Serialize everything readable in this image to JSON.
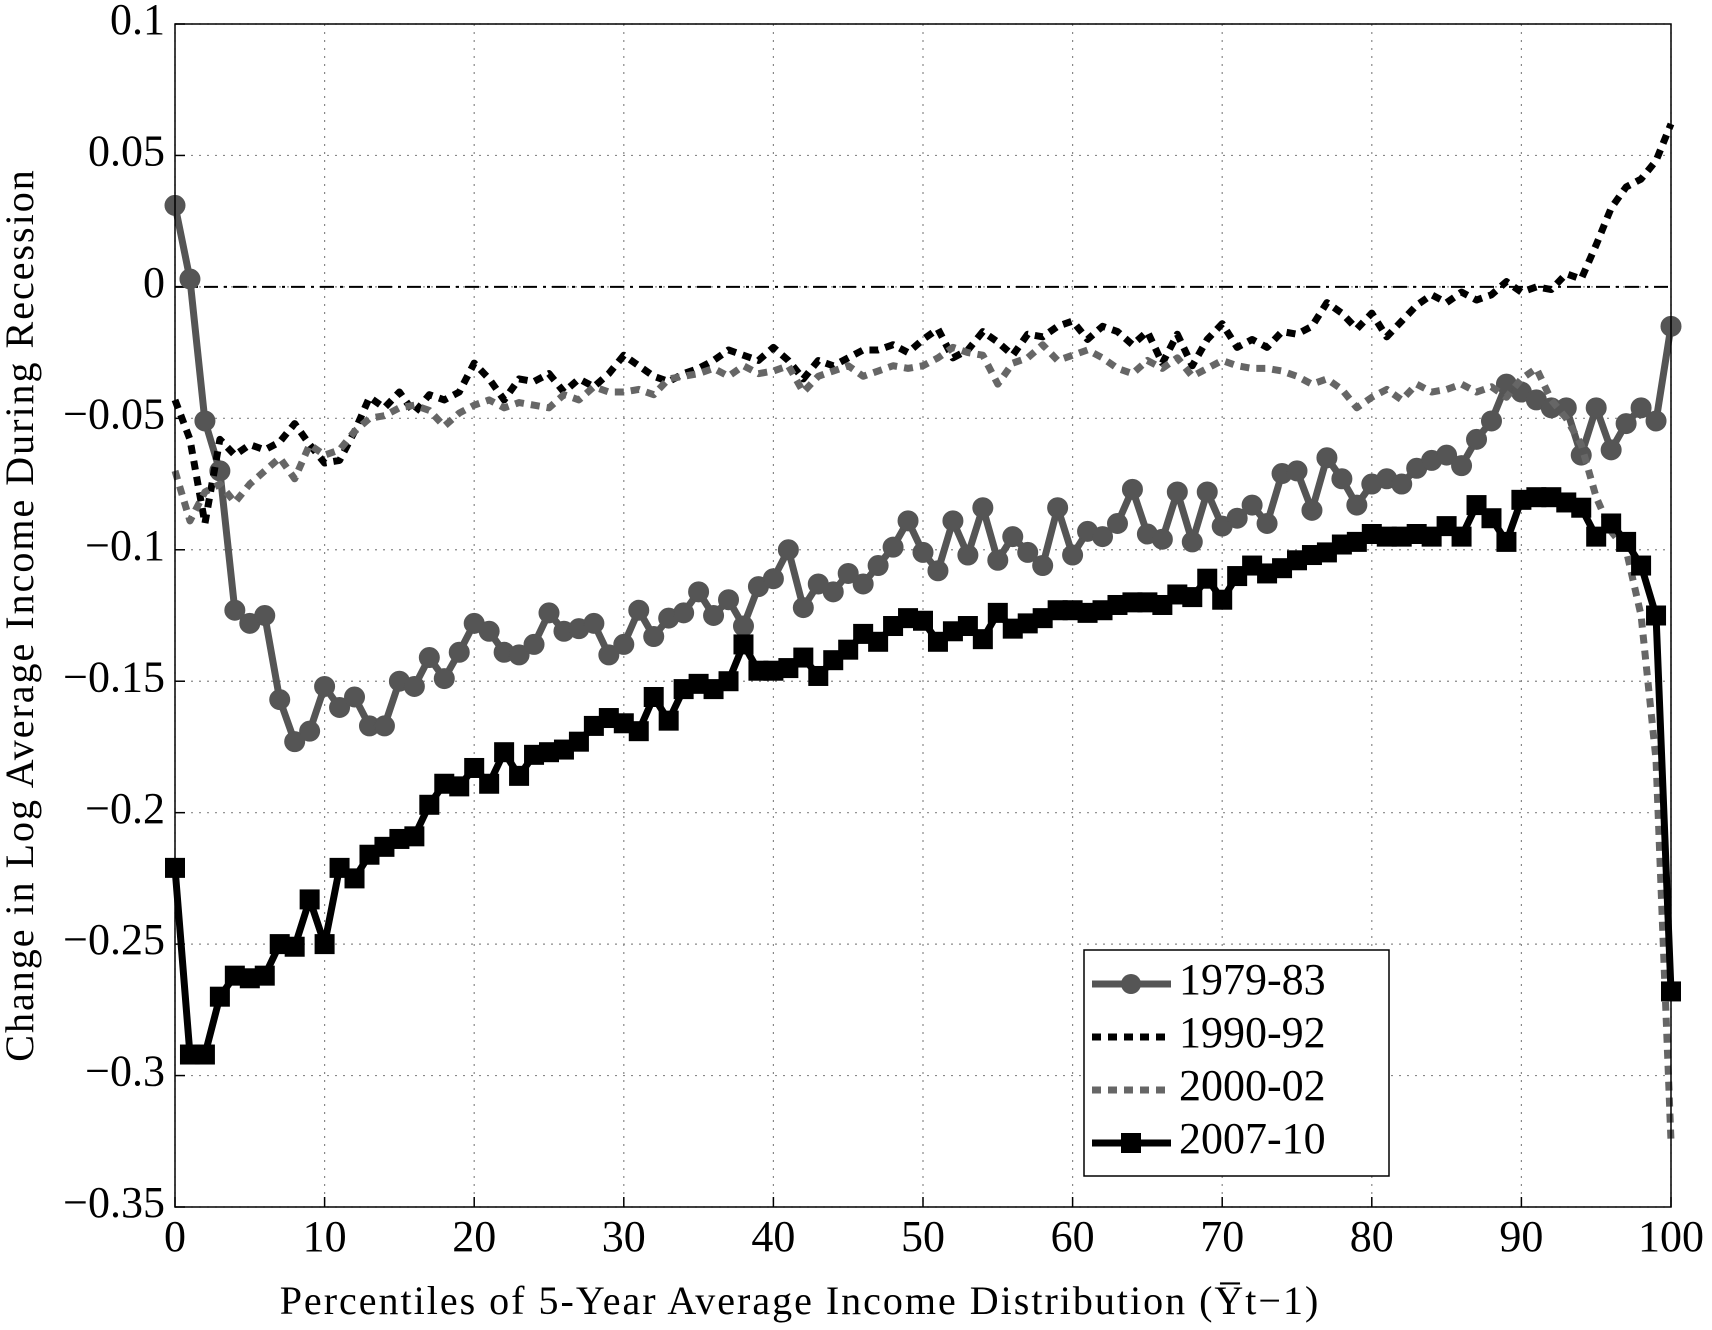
{
  "chart_data": {
    "type": "line",
    "xlabel": "Percentiles of 5-Year Average Income Distribution (Y̅t−1)",
    "ylabel": "Change in Log Average Income During Recession",
    "x": [
      0,
      1,
      2,
      3,
      4,
      5,
      6,
      7,
      8,
      9,
      10,
      11,
      12,
      13,
      14,
      15,
      16,
      17,
      18,
      19,
      20,
      21,
      22,
      23,
      24,
      25,
      26,
      27,
      28,
      29,
      30,
      31,
      32,
      33,
      34,
      35,
      36,
      37,
      38,
      39,
      40,
      41,
      42,
      43,
      44,
      45,
      46,
      47,
      48,
      49,
      50,
      51,
      52,
      53,
      54,
      55,
      56,
      57,
      58,
      59,
      60,
      61,
      62,
      63,
      64,
      65,
      66,
      67,
      68,
      69,
      70,
      71,
      72,
      73,
      74,
      75,
      76,
      77,
      78,
      79,
      80,
      81,
      82,
      83,
      84,
      85,
      86,
      87,
      88,
      89,
      90,
      91,
      92,
      93,
      94,
      95,
      96,
      97,
      98,
      99,
      100
    ],
    "series": [
      {
        "name": "1979-83",
        "color": "#555555",
        "linestyle": "solid",
        "marker": "circle",
        "values": [
          0.031,
          0.003,
          -0.051,
          -0.07,
          -0.123,
          -0.128,
          -0.125,
          -0.157,
          -0.173,
          -0.169,
          -0.152,
          -0.16,
          -0.156,
          -0.167,
          -0.167,
          -0.15,
          -0.152,
          -0.141,
          -0.149,
          -0.139,
          -0.128,
          -0.131,
          -0.139,
          -0.14,
          -0.136,
          -0.124,
          -0.131,
          -0.13,
          -0.128,
          -0.14,
          -0.136,
          -0.123,
          -0.133,
          -0.126,
          -0.124,
          -0.116,
          -0.125,
          -0.119,
          -0.129,
          -0.114,
          -0.111,
          -0.1,
          -0.122,
          -0.113,
          -0.116,
          -0.109,
          -0.113,
          -0.106,
          -0.099,
          -0.089,
          -0.101,
          -0.108,
          -0.089,
          -0.102,
          -0.084,
          -0.104,
          -0.095,
          -0.101,
          -0.106,
          -0.084,
          -0.102,
          -0.093,
          -0.095,
          -0.09,
          -0.077,
          -0.094,
          -0.096,
          -0.078,
          -0.097,
          -0.078,
          -0.091,
          -0.088,
          -0.083,
          -0.09,
          -0.071,
          -0.07,
          -0.085,
          -0.065,
          -0.073,
          -0.083,
          -0.075,
          -0.073,
          -0.075,
          -0.069,
          -0.066,
          -0.064,
          -0.068,
          -0.058,
          -0.051,
          -0.037,
          -0.04,
          -0.043,
          -0.046,
          -0.046,
          -0.064,
          -0.046,
          -0.062,
          -0.052,
          -0.046,
          -0.051,
          -0.015
        ]
      },
      {
        "name": "1990-92",
        "color": "#000000",
        "linestyle": "dotted",
        "marker": null,
        "values": [
          -0.043,
          -0.058,
          -0.09,
          -0.058,
          -0.064,
          -0.06,
          -0.062,
          -0.059,
          -0.052,
          -0.06,
          -0.067,
          -0.066,
          -0.055,
          -0.042,
          -0.046,
          -0.04,
          -0.048,
          -0.041,
          -0.043,
          -0.04,
          -0.029,
          -0.035,
          -0.043,
          -0.035,
          -0.036,
          -0.033,
          -0.04,
          -0.035,
          -0.038,
          -0.033,
          -0.026,
          -0.03,
          -0.034,
          -0.036,
          -0.033,
          -0.031,
          -0.028,
          -0.024,
          -0.026,
          -0.028,
          -0.023,
          -0.028,
          -0.035,
          -0.028,
          -0.03,
          -0.027,
          -0.024,
          -0.024,
          -0.022,
          -0.025,
          -0.02,
          -0.016,
          -0.027,
          -0.024,
          -0.017,
          -0.021,
          -0.026,
          -0.018,
          -0.019,
          -0.015,
          -0.013,
          -0.02,
          -0.015,
          -0.017,
          -0.022,
          -0.017,
          -0.029,
          -0.018,
          -0.03,
          -0.02,
          -0.014,
          -0.023,
          -0.02,
          -0.023,
          -0.017,
          -0.018,
          -0.015,
          -0.006,
          -0.01,
          -0.016,
          -0.01,
          -0.019,
          -0.013,
          -0.007,
          -0.003,
          -0.006,
          -0.002,
          -0.005,
          -0.003,
          0.002,
          -0.002,
          0.0,
          -0.001,
          0.005,
          0.003,
          0.016,
          0.03,
          0.038,
          0.041,
          0.048,
          0.062
        ]
      },
      {
        "name": "2000-02",
        "color": "#666666",
        "linestyle": "dotted",
        "marker": null,
        "values": [
          -0.07,
          -0.089,
          -0.078,
          -0.075,
          -0.082,
          -0.075,
          -0.07,
          -0.065,
          -0.073,
          -0.06,
          -0.064,
          -0.062,
          -0.055,
          -0.05,
          -0.049,
          -0.046,
          -0.045,
          -0.047,
          -0.053,
          -0.048,
          -0.045,
          -0.043,
          -0.046,
          -0.044,
          -0.045,
          -0.046,
          -0.041,
          -0.043,
          -0.038,
          -0.04,
          -0.04,
          -0.039,
          -0.041,
          -0.035,
          -0.034,
          -0.033,
          -0.031,
          -0.034,
          -0.03,
          -0.033,
          -0.032,
          -0.03,
          -0.04,
          -0.034,
          -0.032,
          -0.03,
          -0.034,
          -0.032,
          -0.03,
          -0.031,
          -0.03,
          -0.027,
          -0.023,
          -0.025,
          -0.026,
          -0.037,
          -0.029,
          -0.027,
          -0.022,
          -0.028,
          -0.026,
          -0.024,
          -0.027,
          -0.031,
          -0.033,
          -0.028,
          -0.031,
          -0.027,
          -0.034,
          -0.031,
          -0.028,
          -0.03,
          -0.031,
          -0.031,
          -0.032,
          -0.034,
          -0.037,
          -0.035,
          -0.039,
          -0.046,
          -0.042,
          -0.039,
          -0.043,
          -0.037,
          -0.04,
          -0.039,
          -0.037,
          -0.04,
          -0.038,
          -0.042,
          -0.035,
          -0.031,
          -0.043,
          -0.05,
          -0.06,
          -0.08,
          -0.093,
          -0.1,
          -0.125,
          -0.18,
          -0.325
        ]
      },
      {
        "name": "2007-10",
        "color": "#000000",
        "linestyle": "solid",
        "marker": "square",
        "values": [
          -0.221,
          -0.292,
          -0.292,
          -0.27,
          -0.262,
          -0.263,
          -0.262,
          -0.25,
          -0.251,
          -0.233,
          -0.25,
          -0.221,
          -0.225,
          -0.216,
          -0.213,
          -0.21,
          -0.209,
          -0.197,
          -0.189,
          -0.19,
          -0.183,
          -0.189,
          -0.177,
          -0.186,
          -0.178,
          -0.177,
          -0.176,
          -0.173,
          -0.167,
          -0.164,
          -0.166,
          -0.169,
          -0.156,
          -0.165,
          -0.153,
          -0.151,
          -0.153,
          -0.15,
          -0.136,
          -0.146,
          -0.146,
          -0.145,
          -0.141,
          -0.148,
          -0.142,
          -0.138,
          -0.132,
          -0.135,
          -0.129,
          -0.126,
          -0.127,
          -0.135,
          -0.131,
          -0.129,
          -0.134,
          -0.124,
          -0.13,
          -0.128,
          -0.126,
          -0.123,
          -0.123,
          -0.124,
          -0.123,
          -0.121,
          -0.12,
          -0.12,
          -0.121,
          -0.117,
          -0.118,
          -0.111,
          -0.119,
          -0.11,
          -0.106,
          -0.109,
          -0.107,
          -0.104,
          -0.102,
          -0.101,
          -0.098,
          -0.097,
          -0.094,
          -0.095,
          -0.095,
          -0.094,
          -0.095,
          -0.091,
          -0.095,
          -0.083,
          -0.088,
          -0.097,
          -0.081,
          -0.08,
          -0.08,
          -0.082,
          -0.084,
          -0.095,
          -0.09,
          -0.097,
          -0.106,
          -0.125,
          -0.268
        ]
      }
    ],
    "reference_line": 0,
    "xlim": [
      0,
      100
    ],
    "xticks": [
      0,
      10,
      20,
      30,
      40,
      50,
      60,
      70,
      80,
      90,
      100
    ],
    "ylim": [
      -0.35,
      0.1
    ],
    "yticks": [
      {
        "value": -0.35,
        "label": "−0.35"
      },
      {
        "value": -0.3,
        "label": "−0.3"
      },
      {
        "value": -0.25,
        "label": "−0.25"
      },
      {
        "value": -0.2,
        "label": "−0.2"
      },
      {
        "value": -0.15,
        "label": "−0.15"
      },
      {
        "value": -0.1,
        "label": "−0.1"
      },
      {
        "value": -0.05,
        "label": "−0.05"
      },
      0,
      0.05,
      0.1
    ],
    "grid": true,
    "legend": "lower right"
  }
}
